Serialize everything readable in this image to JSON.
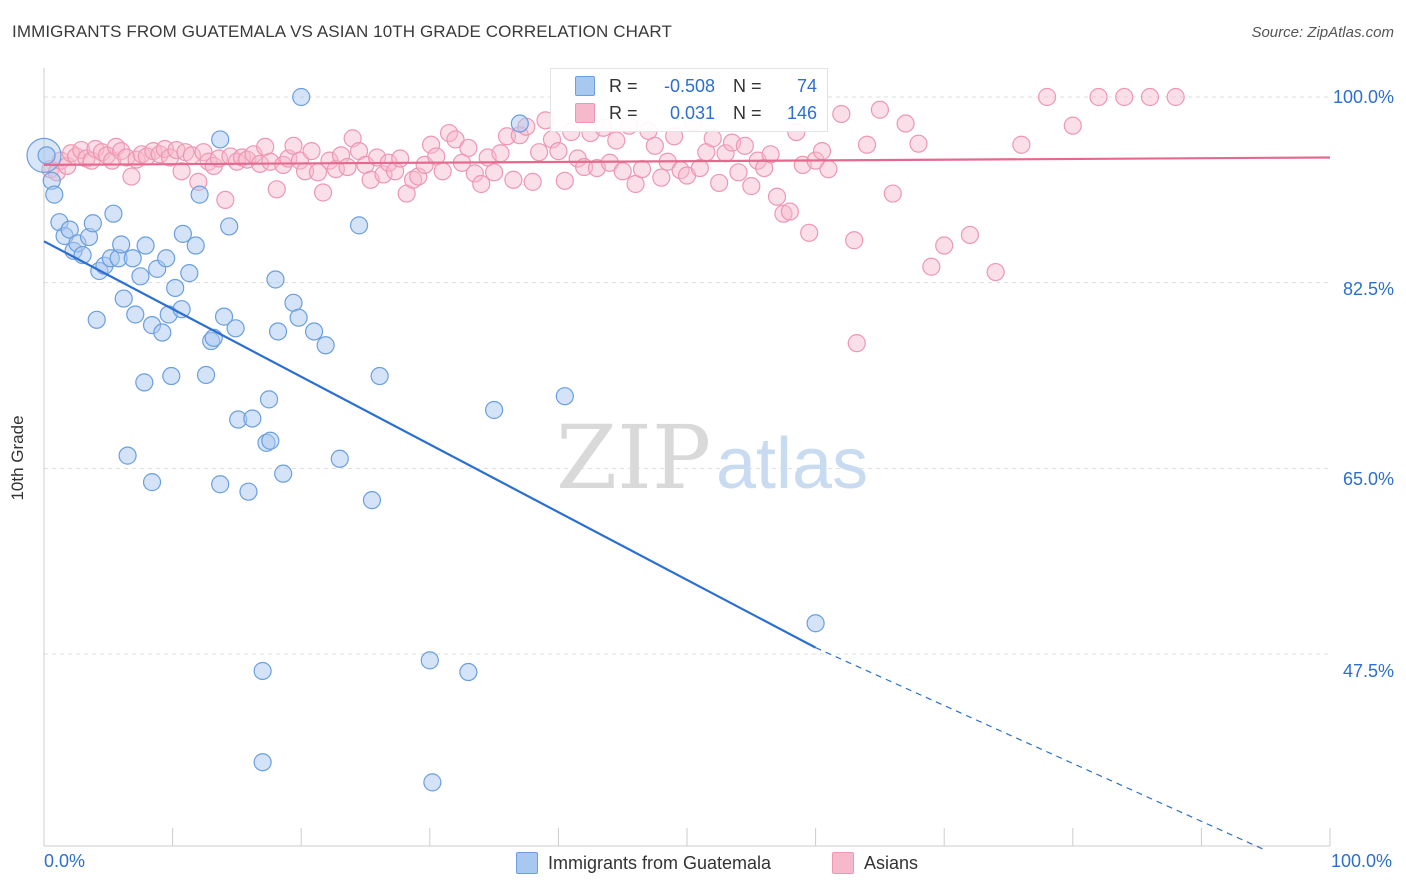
{
  "title": "IMMIGRANTS FROM GUATEMALA VS ASIAN 10TH GRADE CORRELATION CHART",
  "source": "Source: ZipAtlas.com",
  "watermark": {
    "zip": "ZIP",
    "atlas": "atlas"
  },
  "legend_top": {
    "rows": [
      {
        "r_label": "R =",
        "r_value": "-0.508",
        "n_label": "N =",
        "n_value": "74"
      },
      {
        "r_label": "R =",
        "r_value": "0.031",
        "n_label": "N =",
        "n_value": "146"
      }
    ]
  },
  "legend_bottom": {
    "items": [
      {
        "label": "Immigrants from Guatemala"
      },
      {
        "label": "Asians"
      }
    ]
  },
  "axes": {
    "ylabel": "10th Grade",
    "x_tick_left": "0.0%",
    "x_tick_right": "100.0%",
    "y_ticks": [
      "100.0%",
      "82.5%",
      "65.0%",
      "47.5%"
    ]
  },
  "colors": {
    "blue_fill": "#a9c8f0",
    "blue_stroke": "#6a9fe0",
    "blue_line": "#2a6fd1",
    "pink_fill": "#f6b9cb",
    "pink_stroke": "#ee97b2",
    "pink_line": "#e5698f",
    "tick_label": "#2c6fcf"
  },
  "chart_data": {
    "type": "scatter",
    "xlim": [
      0,
      100
    ],
    "ylim": [
      32.5,
      102
    ],
    "grid": true,
    "y_grid_values": [
      100,
      82.5,
      65,
      47.5
    ],
    "series": [
      {
        "name": "Immigrants from Guatemala",
        "color": "#a9c8f0",
        "trend": {
          "x0": 0,
          "y0": 86.4,
          "x1": 60,
          "y1": 48.1,
          "dashed_to_x": 95,
          "dashed_to_y": 29.0
        },
        "points": [
          [
            0.2,
            94.5
          ],
          [
            0.6,
            92.1
          ],
          [
            0.8,
            90.8
          ],
          [
            1.2,
            88.2
          ],
          [
            1.6,
            86.9
          ],
          [
            2.0,
            87.5
          ],
          [
            2.3,
            85.5
          ],
          [
            2.6,
            86.2
          ],
          [
            3.0,
            85.1
          ],
          [
            3.5,
            86.8
          ],
          [
            3.8,
            88.1
          ],
          [
            4.3,
            83.6
          ],
          [
            4.7,
            84.1
          ],
          [
            5.2,
            84.8
          ],
          [
            5.4,
            89.0
          ],
          [
            5.8,
            84.8
          ],
          [
            6.0,
            86.1
          ],
          [
            6.2,
            81.0
          ],
          [
            6.9,
            84.8
          ],
          [
            7.1,
            79.5
          ],
          [
            7.5,
            83.1
          ],
          [
            7.9,
            86.0
          ],
          [
            8.4,
            78.5
          ],
          [
            8.8,
            83.8
          ],
          [
            9.2,
            77.8
          ],
          [
            9.5,
            84.8
          ],
          [
            9.7,
            79.5
          ],
          [
            10.2,
            82.0
          ],
          [
            10.7,
            80.0
          ],
          [
            10.8,
            87.1
          ],
          [
            11.3,
            83.4
          ],
          [
            11.8,
            86.0
          ],
          [
            12.1,
            90.8
          ],
          [
            12.6,
            73.8
          ],
          [
            13.0,
            77.0
          ],
          [
            13.2,
            77.3
          ],
          [
            13.7,
            96.0
          ],
          [
            14.0,
            79.3
          ],
          [
            14.4,
            87.8
          ],
          [
            14.9,
            78.2
          ],
          [
            15.1,
            69.6
          ],
          [
            16.2,
            69.7
          ],
          [
            17.3,
            67.4
          ],
          [
            17.6,
            67.6
          ],
          [
            18.0,
            82.8
          ],
          [
            18.2,
            77.9
          ],
          [
            18.6,
            64.5
          ],
          [
            19.4,
            80.6
          ],
          [
            19.8,
            79.2
          ],
          [
            21.0,
            77.9
          ],
          [
            21.9,
            76.6
          ],
          [
            23.0,
            65.9
          ],
          [
            24.5,
            87.9
          ],
          [
            26.1,
            73.7
          ],
          [
            4.1,
            79.0
          ],
          [
            7.8,
            73.1
          ],
          [
            9.9,
            73.7
          ],
          [
            13.7,
            63.5
          ],
          [
            15.9,
            62.8
          ],
          [
            8.4,
            63.7
          ],
          [
            6.5,
            66.2
          ],
          [
            20.0,
            100.0
          ],
          [
            37.0,
            97.5
          ],
          [
            17.5,
            71.5
          ],
          [
            25.5,
            62.0
          ],
          [
            35.0,
            70.5
          ],
          [
            40.5,
            71.8
          ],
          [
            60.0,
            50.4
          ],
          [
            17.0,
            45.9
          ],
          [
            30.0,
            46.9
          ],
          [
            33.0,
            45.8
          ],
          [
            17.0,
            37.3
          ],
          [
            30.2,
            35.4
          ]
        ]
      },
      {
        "name": "Asians",
        "color": "#f6b9cb",
        "trend": {
          "x0": 0,
          "y0": 93.6,
          "x1": 100,
          "y1": 94.3
        },
        "points": [
          [
            0.5,
            93.2
          ],
          [
            1.0,
            92.9
          ],
          [
            1.3,
            94.0
          ],
          [
            1.8,
            93.5
          ],
          [
            2.1,
            94.7
          ],
          [
            2.5,
            94.4
          ],
          [
            2.9,
            95.0
          ],
          [
            3.3,
            94.2
          ],
          [
            3.7,
            94.0
          ],
          [
            4.0,
            95.1
          ],
          [
            4.5,
            94.8
          ],
          [
            4.9,
            94.5
          ],
          [
            5.3,
            94.0
          ],
          [
            5.6,
            95.3
          ],
          [
            6.0,
            94.9
          ],
          [
            6.4,
            94.3
          ],
          [
            6.8,
            92.5
          ],
          [
            7.2,
            94.1
          ],
          [
            7.6,
            94.6
          ],
          [
            8.0,
            94.4
          ],
          [
            8.5,
            94.9
          ],
          [
            9.0,
            94.6
          ],
          [
            9.4,
            95.1
          ],
          [
            9.8,
            94.3
          ],
          [
            10.3,
            95.0
          ],
          [
            10.7,
            93.0
          ],
          [
            11.0,
            94.8
          ],
          [
            11.5,
            94.5
          ],
          [
            12.0,
            92.0
          ],
          [
            12.4,
            94.8
          ],
          [
            12.8,
            93.9
          ],
          [
            13.2,
            93.5
          ],
          [
            13.6,
            94.2
          ],
          [
            14.1,
            90.3
          ],
          [
            14.5,
            94.4
          ],
          [
            15.0,
            93.9
          ],
          [
            15.4,
            94.3
          ],
          [
            15.8,
            94.1
          ],
          [
            16.3,
            94.6
          ],
          [
            16.8,
            93.7
          ],
          [
            17.2,
            95.3
          ],
          [
            17.6,
            93.9
          ],
          [
            18.1,
            91.3
          ],
          [
            18.6,
            93.6
          ],
          [
            19.0,
            94.2
          ],
          [
            19.4,
            95.4
          ],
          [
            19.9,
            94.0
          ],
          [
            20.3,
            93.0
          ],
          [
            20.8,
            94.9
          ],
          [
            21.3,
            92.9
          ],
          [
            21.7,
            91.0
          ],
          [
            22.2,
            94.0
          ],
          [
            22.7,
            93.2
          ],
          [
            23.1,
            94.5
          ],
          [
            23.6,
            93.4
          ],
          [
            24.0,
            96.1
          ],
          [
            24.5,
            94.9
          ],
          [
            25.0,
            93.6
          ],
          [
            25.4,
            92.2
          ],
          [
            25.9,
            94.3
          ],
          [
            26.4,
            92.7
          ],
          [
            26.8,
            93.8
          ],
          [
            27.3,
            93.0
          ],
          [
            27.7,
            94.2
          ],
          [
            28.2,
            90.9
          ],
          [
            28.7,
            92.2
          ],
          [
            29.1,
            92.5
          ],
          [
            29.6,
            93.6
          ],
          [
            30.1,
            95.5
          ],
          [
            30.5,
            94.4
          ],
          [
            31.0,
            93.0
          ],
          [
            31.5,
            96.6
          ],
          [
            32.0,
            96.0
          ],
          [
            32.5,
            93.8
          ],
          [
            33.0,
            95.2
          ],
          [
            33.5,
            92.8
          ],
          [
            34.0,
            91.8
          ],
          [
            34.5,
            94.3
          ],
          [
            35.0,
            92.9
          ],
          [
            35.5,
            94.7
          ],
          [
            36.0,
            96.3
          ],
          [
            36.5,
            92.2
          ],
          [
            37.0,
            96.4
          ],
          [
            37.5,
            97.2
          ],
          [
            38.0,
            92.0
          ],
          [
            38.5,
            94.8
          ],
          [
            39.0,
            97.8
          ],
          [
            39.5,
            96.0
          ],
          [
            40.0,
            94.9
          ],
          [
            40.5,
            92.1
          ],
          [
            41.0,
            96.7
          ],
          [
            41.5,
            94.2
          ],
          [
            42.0,
            93.4
          ],
          [
            42.5,
            96.6
          ],
          [
            43.0,
            93.3
          ],
          [
            43.5,
            97.1
          ],
          [
            44.0,
            93.8
          ],
          [
            44.5,
            95.9
          ],
          [
            45.0,
            93.0
          ],
          [
            45.5,
            97.3
          ],
          [
            46.0,
            91.8
          ],
          [
            46.5,
            93.2
          ],
          [
            47.0,
            96.8
          ],
          [
            47.5,
            95.4
          ],
          [
            48.0,
            92.4
          ],
          [
            48.5,
            93.9
          ],
          [
            49.0,
            96.3
          ],
          [
            49.5,
            93.1
          ],
          [
            50.0,
            92.6
          ],
          [
            50.5,
            97.6
          ],
          [
            51.0,
            93.3
          ],
          [
            51.5,
            94.8
          ],
          [
            52.0,
            96.1
          ],
          [
            52.5,
            91.9
          ],
          [
            53.0,
            94.7
          ],
          [
            53.5,
            95.7
          ],
          [
            54.0,
            92.9
          ],
          [
            54.5,
            95.4
          ],
          [
            55.0,
            91.6
          ],
          [
            55.5,
            94.0
          ],
          [
            56.0,
            93.3
          ],
          [
            56.5,
            94.6
          ],
          [
            57.0,
            90.6
          ],
          [
            57.5,
            89.0
          ],
          [
            58.0,
            89.2
          ],
          [
            58.5,
            96.7
          ],
          [
            59.0,
            93.6
          ],
          [
            59.5,
            87.2
          ],
          [
            60.0,
            94.0
          ],
          [
            60.5,
            94.9
          ],
          [
            61.0,
            93.2
          ],
          [
            62.0,
            98.4
          ],
          [
            63.0,
            86.5
          ],
          [
            64.0,
            95.5
          ],
          [
            65.0,
            98.8
          ],
          [
            66.0,
            90.9
          ],
          [
            67.0,
            97.5
          ],
          [
            68.0,
            95.6
          ],
          [
            69.0,
            84.0
          ],
          [
            70.0,
            86.0
          ],
          [
            72.0,
            87.0
          ],
          [
            74.0,
            83.5
          ],
          [
            76.0,
            95.5
          ],
          [
            78.0,
            100.0
          ],
          [
            80.0,
            97.3
          ],
          [
            82.0,
            100.0
          ],
          [
            84.0,
            100.0
          ],
          [
            86.0,
            100.0
          ],
          [
            88.0,
            100.0
          ],
          [
            63.2,
            76.8
          ]
        ]
      }
    ]
  }
}
